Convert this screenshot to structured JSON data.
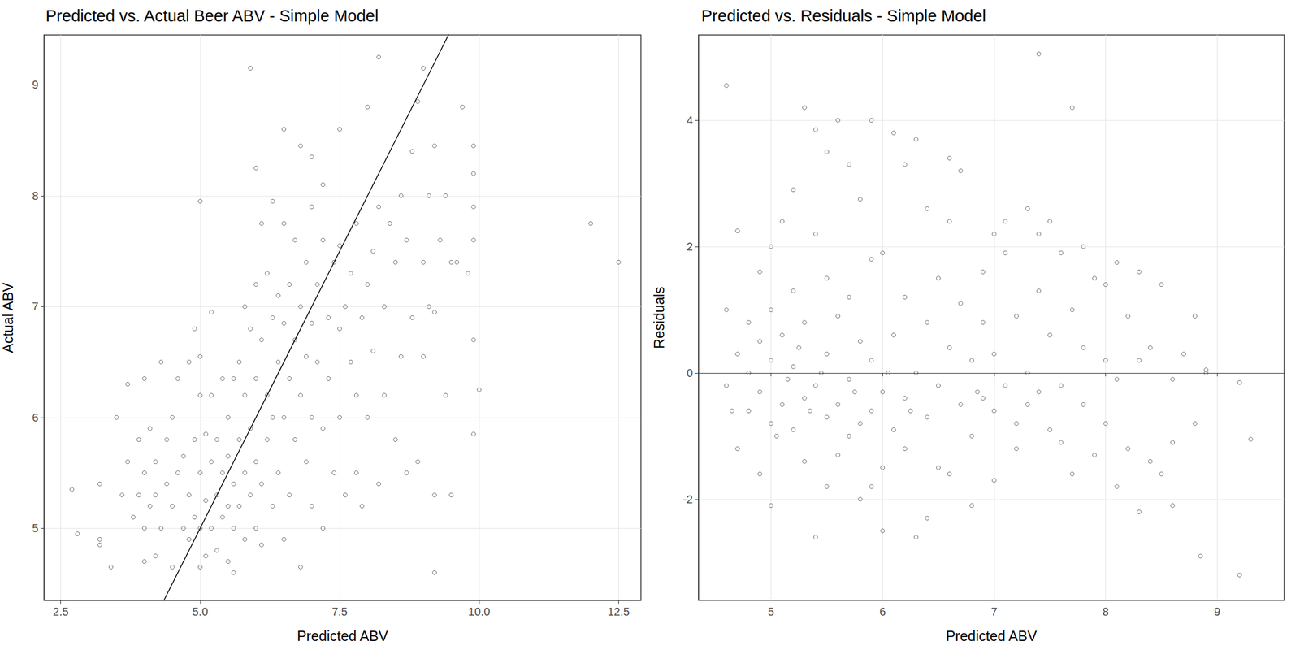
{
  "chart_data": [
    {
      "type": "scatter",
      "title": "Predicted vs. Actual Beer ABV - Simple Model",
      "x_label": "Predicted ABV",
      "y_label": "Actual ABV",
      "marker": "circle-open",
      "color": "#333333",
      "grid": true,
      "xlim": [
        2.2,
        12.9
      ],
      "xticks": [
        {
          "value": 2.5,
          "label": "2.5"
        },
        {
          "value": 5,
          "label": "5.0"
        },
        {
          "value": 7.5,
          "label": "7.5"
        },
        {
          "value": 10,
          "label": "10.0"
        },
        {
          "value": 12.5,
          "label": "12.5"
        }
      ],
      "ylim": [
        4.35,
        9.45
      ],
      "yticks": [
        5,
        6,
        7,
        8,
        9
      ],
      "reference_line": {
        "slope": 1,
        "intercept": 0
      },
      "points": [
        [
          2.7,
          5.35
        ],
        [
          2.8,
          4.95
        ],
        [
          3.2,
          4.9
        ],
        [
          3.2,
          4.85
        ],
        [
          3.2,
          5.4
        ],
        [
          3.4,
          4.65
        ],
        [
          3.5,
          6.0
        ],
        [
          3.6,
          5.3
        ],
        [
          3.7,
          6.3
        ],
        [
          3.7,
          5.6
        ],
        [
          3.8,
          5.1
        ],
        [
          3.9,
          5.3
        ],
        [
          3.9,
          5.8
        ],
        [
          4.0,
          4.7
        ],
        [
          4.0,
          5.0
        ],
        [
          4.0,
          5.5
        ],
        [
          4.0,
          6.35
        ],
        [
          4.1,
          5.2
        ],
        [
          4.1,
          5.9
        ],
        [
          4.2,
          4.75
        ],
        [
          4.2,
          5.3
        ],
        [
          4.2,
          5.6
        ],
        [
          4.3,
          6.5
        ],
        [
          4.3,
          5.0
        ],
        [
          4.4,
          5.4
        ],
        [
          4.4,
          5.8
        ],
        [
          4.5,
          4.65
        ],
        [
          4.5,
          5.2
        ],
        [
          4.5,
          6.0
        ],
        [
          4.6,
          5.5
        ],
        [
          4.6,
          6.35
        ],
        [
          4.7,
          5.0
        ],
        [
          4.7,
          5.65
        ],
        [
          4.8,
          6.5
        ],
        [
          4.8,
          4.9
        ],
        [
          4.8,
          5.3
        ],
        [
          4.9,
          6.8
        ],
        [
          4.9,
          5.1
        ],
        [
          4.9,
          5.8
        ],
        [
          5.0,
          4.65
        ],
        [
          5.0,
          5.0
        ],
        [
          5.0,
          5.5
        ],
        [
          5.0,
          6.2
        ],
        [
          5.0,
          6.55
        ],
        [
          5.0,
          7.95
        ],
        [
          5.1,
          4.75
        ],
        [
          5.1,
          5.25
        ],
        [
          5.1,
          5.85
        ],
        [
          5.2,
          5.0
        ],
        [
          5.2,
          5.6
        ],
        [
          5.2,
          6.2
        ],
        [
          5.2,
          6.95
        ],
        [
          5.3,
          4.8
        ],
        [
          5.3,
          5.3
        ],
        [
          5.3,
          5.8
        ],
        [
          5.4,
          5.1
        ],
        [
          5.4,
          5.5
        ],
        [
          5.4,
          6.35
        ],
        [
          5.5,
          4.7
        ],
        [
          5.5,
          5.2
        ],
        [
          5.5,
          5.65
        ],
        [
          5.5,
          6.0
        ],
        [
          5.6,
          4.6
        ],
        [
          5.6,
          5.0
        ],
        [
          5.6,
          5.4
        ],
        [
          5.6,
          6.35
        ],
        [
          5.7,
          5.2
        ],
        [
          5.7,
          5.8
        ],
        [
          5.7,
          6.5
        ],
        [
          5.8,
          4.9
        ],
        [
          5.8,
          5.5
        ],
        [
          5.8,
          6.2
        ],
        [
          5.8,
          7.0
        ],
        [
          5.9,
          5.3
        ],
        [
          5.9,
          5.9
        ],
        [
          5.9,
          6.8
        ],
        [
          5.9,
          9.15
        ],
        [
          6.0,
          5.0
        ],
        [
          6.0,
          5.6
        ],
        [
          6.0,
          6.35
        ],
        [
          6.0,
          7.2
        ],
        [
          6.0,
          8.25
        ],
        [
          6.1,
          4.85
        ],
        [
          6.1,
          5.4
        ],
        [
          6.1,
          6.7
        ],
        [
          6.1,
          7.75
        ],
        [
          6.2,
          5.8
        ],
        [
          6.2,
          6.2
        ],
        [
          6.2,
          7.3
        ],
        [
          6.3,
          5.2
        ],
        [
          6.3,
          6.0
        ],
        [
          6.3,
          6.9
        ],
        [
          6.3,
          7.95
        ],
        [
          6.4,
          5.5
        ],
        [
          6.4,
          6.5
        ],
        [
          6.4,
          7.1
        ],
        [
          6.5,
          4.9
        ],
        [
          6.5,
          6.0
        ],
        [
          6.5,
          6.85
        ],
        [
          6.5,
          7.75
        ],
        [
          6.5,
          8.6
        ],
        [
          6.6,
          5.3
        ],
        [
          6.6,
          6.35
        ],
        [
          6.6,
          7.2
        ],
        [
          6.7,
          5.8
        ],
        [
          6.7,
          6.7
        ],
        [
          6.7,
          7.6
        ],
        [
          6.8,
          4.65
        ],
        [
          6.8,
          6.2
        ],
        [
          6.8,
          7.0
        ],
        [
          6.8,
          8.45
        ],
        [
          6.9,
          5.6
        ],
        [
          6.9,
          6.55
        ],
        [
          6.9,
          7.4
        ],
        [
          7.0,
          5.2
        ],
        [
          7.0,
          6.0
        ],
        [
          7.0,
          6.85
        ],
        [
          7.0,
          7.9
        ],
        [
          7.0,
          8.35
        ],
        [
          7.1,
          6.5
        ],
        [
          7.1,
          7.2
        ],
        [
          7.2,
          5.0
        ],
        [
          7.2,
          5.9
        ],
        [
          7.2,
          7.6
        ],
        [
          7.2,
          8.1
        ],
        [
          7.3,
          6.35
        ],
        [
          7.3,
          6.9
        ],
        [
          7.4,
          5.5
        ],
        [
          7.4,
          7.4
        ],
        [
          7.5,
          6.0
        ],
        [
          7.5,
          6.8
        ],
        [
          7.5,
          7.55
        ],
        [
          7.5,
          8.6
        ],
        [
          7.6,
          5.3
        ],
        [
          7.6,
          7.0
        ],
        [
          7.7,
          6.5
        ],
        [
          7.7,
          7.3
        ],
        [
          7.8,
          5.5
        ],
        [
          7.8,
          6.2
        ],
        [
          7.8,
          7.75
        ],
        [
          7.9,
          5.2
        ],
        [
          7.9,
          6.9
        ],
        [
          8.0,
          6.0
        ],
        [
          8.0,
          7.2
        ],
        [
          8.0,
          8.8
        ],
        [
          8.1,
          6.6
        ],
        [
          8.1,
          7.5
        ],
        [
          8.2,
          5.4
        ],
        [
          8.2,
          9.25
        ],
        [
          8.2,
          7.9
        ],
        [
          8.3,
          6.2
        ],
        [
          8.3,
          7.0
        ],
        [
          8.4,
          7.75
        ],
        [
          8.5,
          5.8
        ],
        [
          8.5,
          7.4
        ],
        [
          8.6,
          6.55
        ],
        [
          8.6,
          8.0
        ],
        [
          8.7,
          5.5
        ],
        [
          8.7,
          7.6
        ],
        [
          8.8,
          6.9
        ],
        [
          8.8,
          8.4
        ],
        [
          8.9,
          5.6
        ],
        [
          8.9,
          8.85
        ],
        [
          9.0,
          6.55
        ],
        [
          9.0,
          7.4
        ],
        [
          9.0,
          9.15
        ],
        [
          9.1,
          7.0
        ],
        [
          9.1,
          8.0
        ],
        [
          9.2,
          4.6
        ],
        [
          9.2,
          5.3
        ],
        [
          9.2,
          6.95
        ],
        [
          9.2,
          8.45
        ],
        [
          9.3,
          7.6
        ],
        [
          9.4,
          6.2
        ],
        [
          9.4,
          8.0
        ],
        [
          9.5,
          5.3
        ],
        [
          9.5,
          7.4
        ],
        [
          9.6,
          7.4
        ],
        [
          9.7,
          8.8
        ],
        [
          9.8,
          7.3
        ],
        [
          9.9,
          5.85
        ],
        [
          9.9,
          6.7
        ],
        [
          9.9,
          7.6
        ],
        [
          9.9,
          7.9
        ],
        [
          9.9,
          8.2
        ],
        [
          9.9,
          8.45
        ],
        [
          10.0,
          6.25
        ],
        [
          12.0,
          7.75
        ],
        [
          12.5,
          7.4
        ]
      ]
    },
    {
      "type": "scatter",
      "title": "Predicted vs. Residuals - Simple Model",
      "x_label": "Predicted ABV",
      "y_label": "Residuals",
      "marker": "circle-open",
      "color": "#333333",
      "grid": true,
      "xlim": [
        4.35,
        9.6
      ],
      "xticks": [
        5,
        6,
        7,
        8,
        9
      ],
      "ylim": [
        -3.6,
        5.35
      ],
      "yticks": [
        -2,
        0,
        2,
        4
      ],
      "points": [
        [
          4.6,
          4.55
        ],
        [
          4.6,
          1.0
        ],
        [
          4.6,
          -0.2
        ],
        [
          4.7,
          2.25
        ],
        [
          4.7,
          -1.2
        ],
        [
          4.7,
          0.3
        ],
        [
          4.8,
          0.8
        ],
        [
          4.8,
          -0.6
        ],
        [
          4.8,
          0.0
        ],
        [
          4.9,
          1.6
        ],
        [
          4.9,
          -1.6
        ],
        [
          4.9,
          0.5
        ],
        [
          4.9,
          -0.3
        ],
        [
          5.0,
          2.0
        ],
        [
          5.0,
          -2.1
        ],
        [
          5.0,
          0.2
        ],
        [
          5.0,
          -0.8
        ],
        [
          5.0,
          1.0
        ],
        [
          5.1,
          -0.5
        ],
        [
          5.1,
          0.6
        ],
        [
          5.1,
          2.4
        ],
        [
          5.2,
          1.3
        ],
        [
          5.2,
          -0.9
        ],
        [
          5.2,
          0.1
        ],
        [
          5.2,
          2.9
        ],
        [
          5.3,
          4.2
        ],
        [
          5.3,
          -0.4
        ],
        [
          5.3,
          0.8
        ],
        [
          5.3,
          -1.4
        ],
        [
          5.4,
          3.85
        ],
        [
          5.4,
          2.2
        ],
        [
          5.4,
          -0.2
        ],
        [
          5.4,
          -2.6
        ],
        [
          5.5,
          3.5
        ],
        [
          5.5,
          1.5
        ],
        [
          5.5,
          -0.7
        ],
        [
          5.5,
          0.3
        ],
        [
          5.5,
          -1.8
        ],
        [
          5.6,
          4.0
        ],
        [
          5.6,
          0.9
        ],
        [
          5.6,
          -0.5
        ],
        [
          5.6,
          -1.3
        ],
        [
          5.7,
          3.3
        ],
        [
          5.7,
          1.2
        ],
        [
          5.7,
          -0.1
        ],
        [
          5.7,
          -1.0
        ],
        [
          5.8,
          2.75
        ],
        [
          5.8,
          0.5
        ],
        [
          5.8,
          -0.8
        ],
        [
          5.8,
          -2.0
        ],
        [
          5.9,
          4.0
        ],
        [
          5.9,
          1.8
        ],
        [
          5.9,
          0.2
        ],
        [
          5.9,
          -0.6
        ],
        [
          5.9,
          -1.8
        ],
        [
          6.0,
          1.9
        ],
        [
          6.0,
          -0.3
        ],
        [
          6.0,
          -1.5
        ],
        [
          6.0,
          -2.5
        ],
        [
          6.1,
          0.6
        ],
        [
          6.1,
          -0.9
        ],
        [
          6.1,
          3.8
        ],
        [
          6.2,
          3.3
        ],
        [
          6.2,
          1.2
        ],
        [
          6.2,
          -0.4
        ],
        [
          6.2,
          -1.2
        ],
        [
          6.3,
          3.7
        ],
        [
          6.3,
          0.0
        ],
        [
          6.3,
          -2.6
        ],
        [
          6.4,
          2.6
        ],
        [
          6.4,
          0.8
        ],
        [
          6.4,
          -0.7
        ],
        [
          6.4,
          -2.3
        ],
        [
          6.5,
          1.5
        ],
        [
          6.5,
          -0.2
        ],
        [
          6.5,
          -1.5
        ],
        [
          6.6,
          3.4
        ],
        [
          6.6,
          2.4
        ],
        [
          6.6,
          0.4
        ],
        [
          6.6,
          -1.6
        ],
        [
          6.7,
          1.1
        ],
        [
          6.7,
          -0.5
        ],
        [
          6.7,
          3.2
        ],
        [
          6.8,
          0.2
        ],
        [
          6.8,
          -1.0
        ],
        [
          6.8,
          -2.1
        ],
        [
          6.9,
          1.6
        ],
        [
          6.9,
          -0.4
        ],
        [
          6.9,
          0.8
        ],
        [
          7.0,
          2.2
        ],
        [
          7.0,
          -0.6
        ],
        [
          7.0,
          -1.7
        ],
        [
          7.0,
          0.3
        ],
        [
          7.1,
          1.9
        ],
        [
          7.1,
          -0.2
        ],
        [
          7.1,
          2.4
        ],
        [
          7.2,
          0.9
        ],
        [
          7.2,
          -0.8
        ],
        [
          7.2,
          -1.2
        ],
        [
          7.3,
          2.6
        ],
        [
          7.3,
          0.0
        ],
        [
          7.3,
          -0.5
        ],
        [
          7.4,
          5.05
        ],
        [
          7.4,
          2.2
        ],
        [
          7.4,
          1.3
        ],
        [
          7.4,
          -0.3
        ],
        [
          7.5,
          2.4
        ],
        [
          7.5,
          -0.9
        ],
        [
          7.5,
          0.6
        ],
        [
          7.6,
          1.9
        ],
        [
          7.6,
          -1.1
        ],
        [
          7.6,
          -0.2
        ],
        [
          7.7,
          1.0
        ],
        [
          7.7,
          -1.6
        ],
        [
          7.7,
          4.2
        ],
        [
          7.8,
          2.0
        ],
        [
          7.8,
          -0.5
        ],
        [
          7.8,
          0.4
        ],
        [
          7.9,
          -1.3
        ],
        [
          7.9,
          1.5
        ],
        [
          8.0,
          0.2
        ],
        [
          8.0,
          -0.8
        ],
        [
          8.0,
          1.4
        ],
        [
          8.1,
          1.75
        ],
        [
          8.1,
          -1.8
        ],
        [
          8.1,
          -0.1
        ],
        [
          8.2,
          0.9
        ],
        [
          8.2,
          -1.2
        ],
        [
          8.3,
          -2.2
        ],
        [
          8.3,
          1.6
        ],
        [
          8.3,
          0.2
        ],
        [
          8.4,
          -1.4
        ],
        [
          8.4,
          0.4
        ],
        [
          8.5,
          1.4
        ],
        [
          8.5,
          -1.6
        ],
        [
          8.6,
          -2.1
        ],
        [
          8.6,
          -1.1
        ],
        [
          8.6,
          -0.1
        ],
        [
          8.7,
          0.3
        ],
        [
          8.8,
          -0.8
        ],
        [
          8.8,
          0.9
        ],
        [
          8.9,
          0.05
        ],
        [
          9.2,
          -3.2
        ],
        [
          9.2,
          -0.15
        ],
        [
          9.3,
          -1.05
        ],
        [
          8.85,
          -2.9
        ],
        [
          8.9,
          0.0
        ],
        [
          4.65,
          -0.6
        ],
        [
          5.05,
          -1.0
        ],
        [
          5.15,
          -0.1
        ],
        [
          5.25,
          0.4
        ],
        [
          5.35,
          -0.6
        ],
        [
          5.45,
          0.0
        ],
        [
          5.75,
          -0.3
        ],
        [
          6.05,
          0.0
        ],
        [
          6.25,
          -0.6
        ],
        [
          6.85,
          -0.3
        ]
      ]
    }
  ]
}
